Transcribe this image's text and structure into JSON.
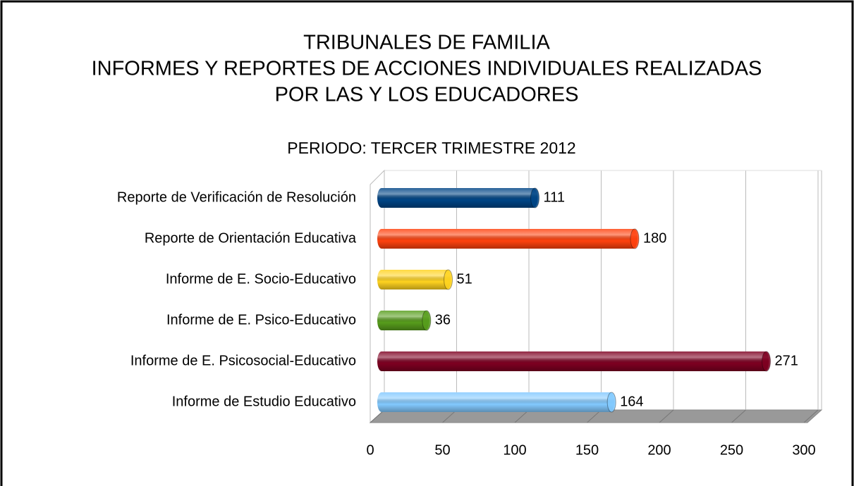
{
  "chart_data": {
    "type": "bar",
    "title": [
      "TRIBUNALES DE FAMILIA",
      "INFORMES Y REPORTES DE ACCIONES INDIVIDUALES REALIZADAS",
      "POR LAS Y LOS EDUCADORES"
    ],
    "subtitle": "PERIODO: TERCER TRIMESTRE 2012",
    "categories": [
      "Reporte de Verificación de Resolución",
      "Reporte de Orientación Educativa",
      "Informe de E. Socio-Educativo",
      "Informe de E. Psico-Educativo",
      "Informe de E. Psicosocial-Educativo",
      "Informe de Estudio Educativo"
    ],
    "values": [
      111,
      180,
      51,
      36,
      271,
      164
    ],
    "colors": [
      "#004586",
      "#ff420e",
      "#ffd320",
      "#579d1c",
      "#7e0021",
      "#83caff"
    ],
    "xlim": [
      0,
      300
    ],
    "xticks": [
      0,
      50,
      100,
      150,
      200,
      250,
      300
    ],
    "grid": true
  }
}
